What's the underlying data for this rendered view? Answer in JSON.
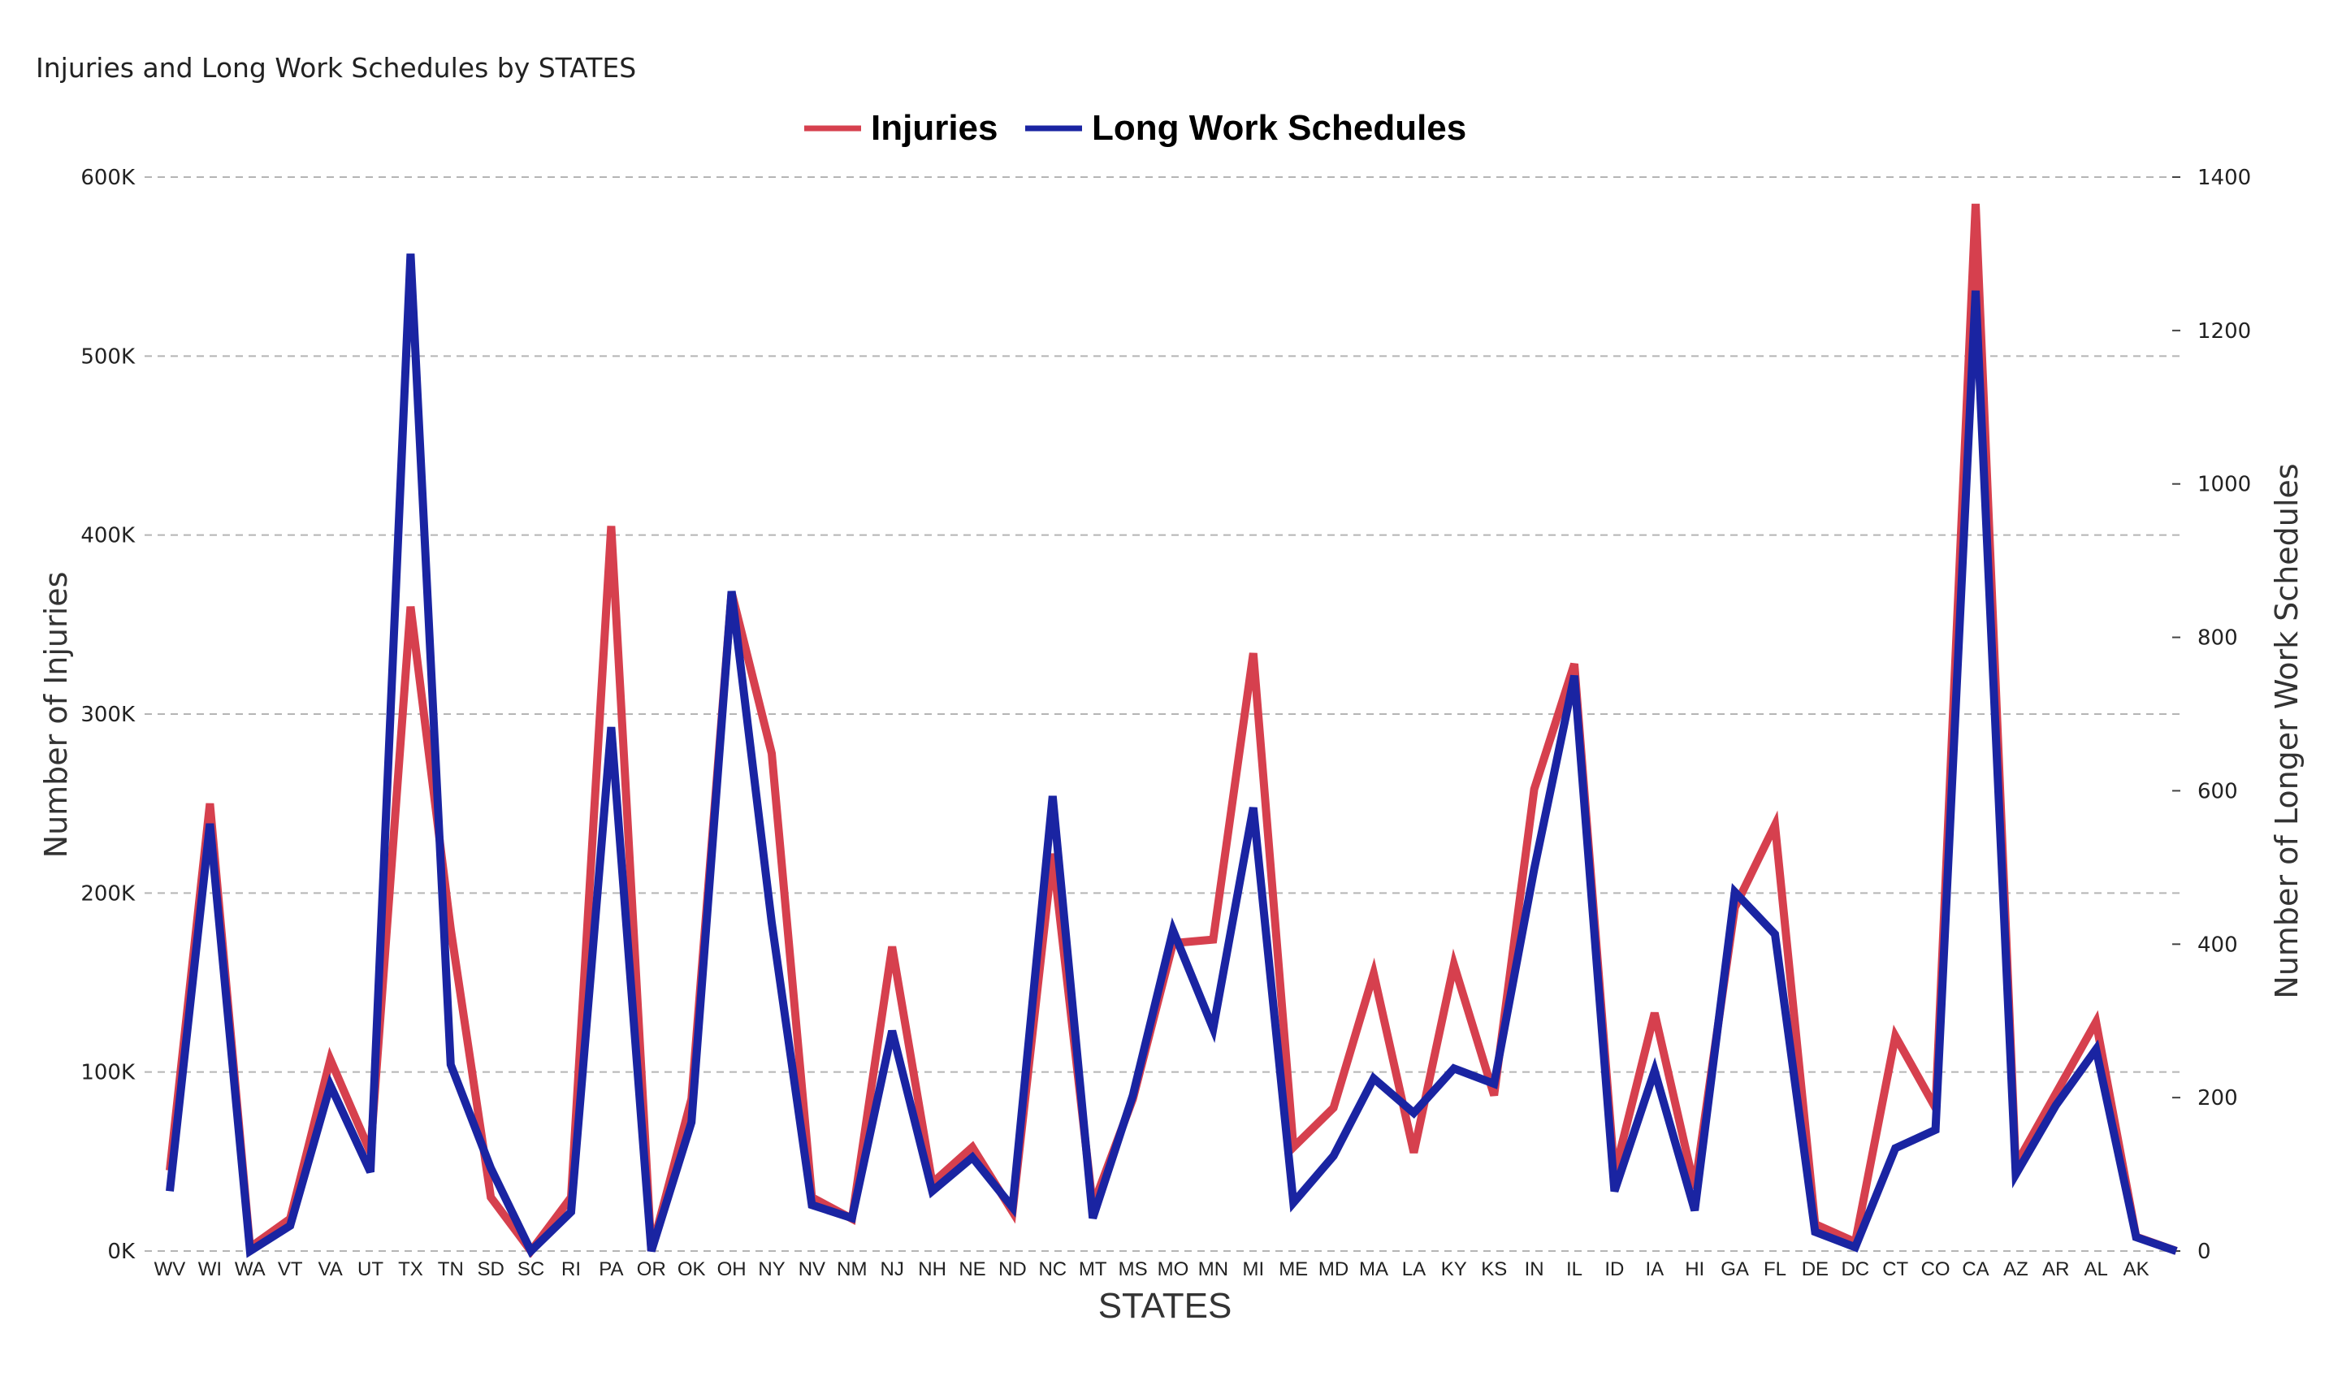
{
  "title": "Injuries and Long Work Schedules by STATES",
  "chart_data": {
    "type": "line",
    "title": "Injuries and Long Work Schedules by STATES",
    "xlabel": "STATES",
    "ylabel_left": "Number of Injuries",
    "ylabel_right": "Number of Longer Work Schedules",
    "categories": [
      "WV",
      "WI",
      "WA",
      "VT",
      "VA",
      "UT",
      "TX",
      "TN",
      "SD",
      "SC",
      "RI",
      "PA",
      "OR",
      "OK",
      "OH",
      "NY",
      "NV",
      "NM",
      "NJ",
      "NH",
      "NE",
      "ND",
      "NC",
      "MT",
      "MS",
      "MO",
      "MN",
      "MI",
      "ME",
      "MD",
      "MA",
      "LA",
      "KY",
      "KS",
      "IN",
      "IL",
      "ID",
      "IA",
      "HI",
      "GA",
      "FL",
      "DE",
      "DC",
      "CT",
      "CO",
      "CA",
      "AZ",
      "AR",
      "AL",
      "AK",
      ""
    ],
    "series": [
      {
        "name": "Injuries",
        "axis": "left",
        "color": "#d6404e",
        "values": [
          45000,
          250000,
          2000,
          18000,
          107000,
          55000,
          360000,
          180000,
          30000,
          0,
          30000,
          405000,
          0,
          85000,
          368000,
          278000,
          30000,
          18000,
          170000,
          38000,
          58000,
          22000,
          222000,
          25000,
          85000,
          172000,
          174000,
          334000,
          58000,
          80000,
          155000,
          55000,
          160000,
          87000,
          258000,
          328000,
          43000,
          133000,
          35000,
          192000,
          238000,
          15000,
          5000,
          120000,
          80000,
          585000,
          48000,
          88000,
          128000,
          8000,
          0
        ]
      },
      {
        "name": "Long Work Schedules",
        "axis": "right",
        "color": "#1a24a2",
        "values": [
          78,
          557,
          0,
          33,
          216,
          103,
          1300,
          243,
          108,
          0,
          51,
          683,
          0,
          168,
          860,
          428,
          60,
          43,
          287,
          78,
          122,
          57,
          593,
          43,
          203,
          418,
          290,
          578,
          63,
          124,
          225,
          180,
          238,
          218,
          498,
          750,
          78,
          235,
          53,
          468,
          413,
          25,
          5,
          134,
          158,
          1252,
          100,
          190,
          263,
          18,
          0
        ]
      }
    ],
    "ylim_left": [
      0,
      600000
    ],
    "ylim_right": [
      0,
      1400
    ],
    "yticks_left": [
      "0K",
      "100K",
      "200K",
      "300K",
      "400K",
      "500K",
      "600K"
    ],
    "yticks_right": [
      "0",
      "200",
      "400",
      "600",
      "800",
      "1000",
      "1200",
      "1400"
    ],
    "grid": true,
    "legend": "top-center"
  }
}
